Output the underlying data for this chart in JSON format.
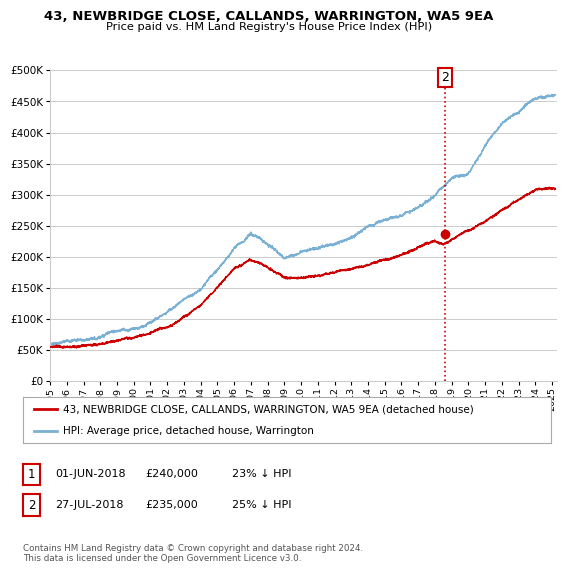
{
  "title": "43, NEWBRIDGE CLOSE, CALLANDS, WARRINGTON, WA5 9EA",
  "subtitle": "Price paid vs. HM Land Registry's House Price Index (HPI)",
  "ylim": [
    0,
    500000
  ],
  "xlim_start": 1995.0,
  "xlim_end": 2025.3,
  "legend_property_label": "43, NEWBRIDGE CLOSE, CALLANDS, WARRINGTON, WA5 9EA (detached house)",
  "legend_hpi_label": "HPI: Average price, detached house, Warrington",
  "transaction1_date": "01-JUN-2018",
  "transaction1_price": "£240,000",
  "transaction1_hpi": "23% ↓ HPI",
  "transaction2_date": "27-JUL-2018",
  "transaction2_price": "£235,000",
  "transaction2_hpi": "25% ↓ HPI",
  "transaction_x": 2018.58,
  "transaction_y": 237500,
  "footer": "Contains HM Land Registry data © Crown copyright and database right 2024.\nThis data is licensed under the Open Government Licence v3.0.",
  "property_color": "#cc0000",
  "hpi_color": "#7ab0d4",
  "vline_color": "#cc0000",
  "grid_color": "#cccccc",
  "background_color": "#ffffff"
}
